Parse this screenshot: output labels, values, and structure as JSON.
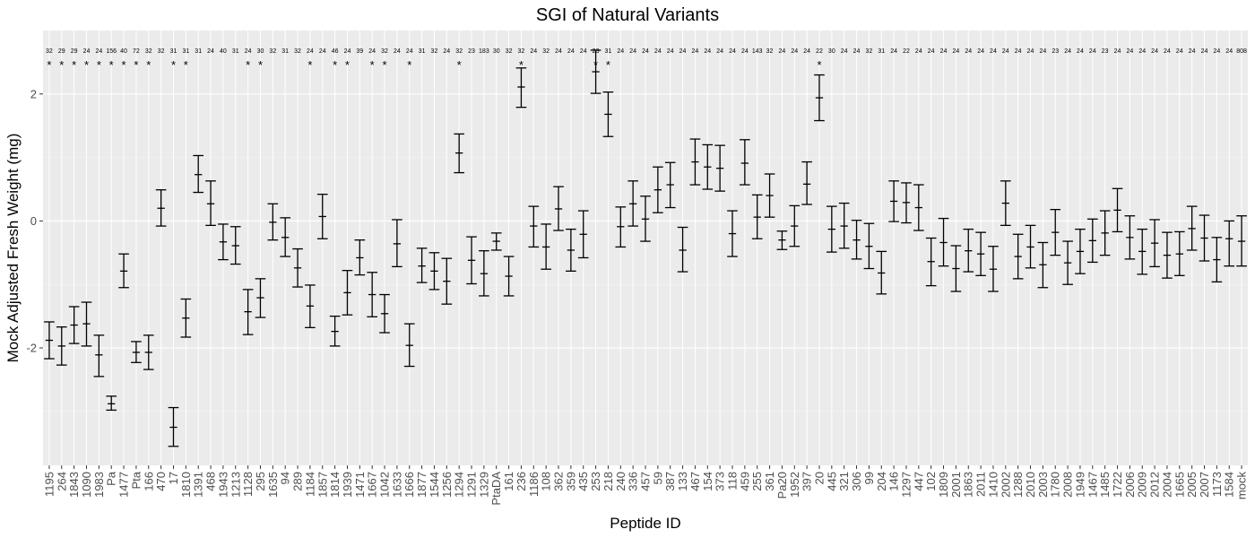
{
  "chart_data": {
    "type": "errorbar",
    "title": "SGI of Natural Variants",
    "xlabel": "Peptide ID",
    "ylabel": "Mock Adjusted Fresh Weight (mg)",
    "ylim": [
      -3.85,
      3.0
    ],
    "yticks": [
      -2,
      0,
      2
    ],
    "grid": true,
    "categories": [
      "1195",
      "264",
      "1843",
      "1090",
      "1983",
      "Pa",
      "1477",
      "Pta",
      "166",
      "470",
      "17",
      "1810",
      "1391",
      "468",
      "1943",
      "1213",
      "1128",
      "295",
      "1635",
      "94",
      "289",
      "1184",
      "1857",
      "1814",
      "1939",
      "1471",
      "1667",
      "1042",
      "1633",
      "1666",
      "1877",
      "1544",
      "1256",
      "1294",
      "1291",
      "1329",
      "PtaDA",
      "161",
      "236",
      "1186",
      "108",
      "362",
      "359",
      "435",
      "253",
      "218",
      "240",
      "336",
      "457",
      "59",
      "387",
      "133",
      "467",
      "154",
      "373",
      "118",
      "459",
      "255",
      "361",
      "Pa20",
      "1952",
      "397",
      "20",
      "445",
      "321",
      "306",
      "99",
      "204",
      "146",
      "1297",
      "447",
      "102",
      "1809",
      "2001",
      "1863",
      "2011",
      "1410",
      "2002",
      "1288",
      "2010",
      "2003",
      "1780",
      "2008",
      "1949",
      "1467",
      "1485",
      "1722",
      "2006",
      "2009",
      "2012",
      "2004",
      "1665",
      "2005",
      "2007",
      "1173",
      "1584",
      "mock"
    ],
    "n": [
      "32",
      "29",
      "29",
      "24",
      "24",
      "156",
      "40",
      "72",
      "32",
      "32",
      "31",
      "31",
      "31",
      "24",
      "40",
      "31",
      "24",
      "30",
      "32",
      "31",
      "32",
      "24",
      "24",
      "46",
      "24",
      "39",
      "24",
      "32",
      "24",
      "24",
      "31",
      "32",
      "24",
      "32",
      "23",
      "183",
      "30",
      "32",
      "32",
      "24",
      "32",
      "24",
      "24",
      "24",
      "23",
      "31",
      "24",
      "24",
      "24",
      "24",
      "24",
      "24",
      "24",
      "24",
      "24",
      "24",
      "24",
      "143",
      "32",
      "24",
      "24",
      "24",
      "22",
      "30",
      "24",
      "24",
      "32",
      "31",
      "24",
      "22",
      "24",
      "24",
      "24",
      "24",
      "24",
      "24",
      "24",
      "24",
      "24",
      "24",
      "24",
      "23",
      "24",
      "24",
      "24",
      "23",
      "24",
      "24",
      "24",
      "24",
      "24",
      "24",
      "24",
      "24",
      "24",
      "24",
      "808"
    ],
    "significant": [
      true,
      true,
      true,
      true,
      true,
      true,
      true,
      true,
      true,
      false,
      true,
      true,
      false,
      false,
      false,
      false,
      true,
      true,
      false,
      false,
      false,
      true,
      false,
      true,
      true,
      false,
      true,
      true,
      false,
      true,
      false,
      false,
      false,
      true,
      false,
      false,
      false,
      false,
      true,
      false,
      false,
      false,
      false,
      false,
      true,
      true,
      false,
      false,
      false,
      false,
      false,
      false,
      false,
      false,
      false,
      false,
      false,
      false,
      false,
      false,
      false,
      false,
      true,
      false,
      false,
      false,
      false,
      false,
      false,
      false,
      false,
      false,
      false,
      false,
      false,
      false,
      false,
      false,
      false,
      false,
      false,
      false,
      false,
      false,
      false,
      false,
      false,
      false,
      false,
      false,
      false,
      false,
      false,
      false,
      false,
      false,
      false
    ],
    "mean": [
      -1.88,
      -1.97,
      -1.64,
      -1.62,
      -2.11,
      -2.88,
      -0.79,
      -2.07,
      -2.07,
      0.2,
      -3.25,
      -1.53,
      0.73,
      0.27,
      -0.33,
      -0.39,
      -1.43,
      -1.21,
      -0.02,
      -0.26,
      -0.74,
      -1.34,
      0.07,
      -1.74,
      -1.13,
      -0.58,
      -1.16,
      -1.46,
      -0.36,
      -1.96,
      -0.71,
      -0.79,
      -0.95,
      1.07,
      -0.62,
      -0.83,
      -0.32,
      -0.87,
      2.11,
      -0.08,
      -0.41,
      0.19,
      -0.46,
      -0.21,
      2.35,
      1.68,
      -0.09,
      0.27,
      0.03,
      0.49,
      0.57,
      -0.46,
      0.93,
      0.85,
      0.83,
      -0.2,
      0.91,
      0.06,
      0.4,
      -0.3,
      -0.08,
      0.58,
      1.94,
      -0.13,
      -0.08,
      -0.3,
      -0.4,
      -0.82,
      0.31,
      0.29,
      0.21,
      -0.64,
      -0.34,
      -0.75,
      -0.47,
      -0.52,
      -0.76,
      0.28,
      -0.56,
      -0.41,
      -0.69,
      -0.18,
      -0.66,
      -0.48,
      -0.31,
      -0.19,
      0.17,
      -0.26,
      -0.48,
      -0.35,
      -0.54,
      -0.52,
      -0.12,
      -0.27,
      -0.61,
      -0.28,
      -0.32
    ],
    "lower": [
      -2.17,
      -2.27,
      -1.93,
      -1.97,
      -2.45,
      -2.98,
      -1.05,
      -2.23,
      -2.34,
      -0.08,
      -3.55,
      -1.83,
      0.45,
      -0.07,
      -0.61,
      -0.68,
      -1.79,
      -1.52,
      -0.3,
      -0.56,
      -1.04,
      -1.68,
      -0.28,
      -1.97,
      -1.48,
      -0.85,
      -1.51,
      -1.76,
      -0.72,
      -2.29,
      -0.97,
      -1.08,
      -1.31,
      0.76,
      -0.99,
      -1.18,
      -0.46,
      -1.18,
      1.79,
      -0.41,
      -0.76,
      -0.15,
      -0.79,
      -0.58,
      2.01,
      1.33,
      -0.41,
      -0.08,
      -0.32,
      0.13,
      0.21,
      -0.8,
      0.57,
      0.5,
      0.47,
      -0.56,
      0.57,
      -0.28,
      0.06,
      -0.45,
      -0.4,
      0.26,
      1.58,
      -0.49,
      -0.43,
      -0.6,
      -0.75,
      -1.15,
      -0.01,
      -0.03,
      -0.15,
      -1.02,
      -0.71,
      -1.11,
      -0.8,
      -0.86,
      -1.11,
      -0.07,
      -0.91,
      -0.74,
      -1.05,
      -0.54,
      -1.0,
      -0.83,
      -0.65,
      -0.54,
      -0.17,
      -0.6,
      -0.84,
      -0.72,
      -0.9,
      -0.86,
      -0.46,
      -0.63,
      -0.96,
      -0.71,
      -0.71
    ],
    "upper": [
      -1.59,
      -1.67,
      -1.35,
      -1.28,
      -1.8,
      -2.76,
      -0.52,
      -1.9,
      -1.8,
      0.49,
      -2.94,
      -1.23,
      1.03,
      0.63,
      -0.05,
      -0.09,
      -1.08,
      -0.91,
      0.27,
      0.05,
      -0.44,
      -1.01,
      0.42,
      -1.5,
      -0.78,
      -0.3,
      -0.81,
      -1.16,
      0.02,
      -1.62,
      -0.43,
      -0.5,
      -0.59,
      1.37,
      -0.25,
      -0.47,
      -0.19,
      -0.56,
      2.41,
      0.23,
      -0.05,
      0.54,
      -0.13,
      0.16,
      2.69,
      2.03,
      0.22,
      0.63,
      0.39,
      0.85,
      0.92,
      -0.1,
      1.29,
      1.2,
      1.19,
      0.16,
      1.28,
      0.41,
      0.74,
      -0.16,
      0.24,
      0.93,
      2.3,
      0.23,
      0.28,
      0.01,
      -0.04,
      -0.48,
      0.63,
      0.6,
      0.57,
      -0.27,
      0.04,
      -0.39,
      -0.13,
      -0.18,
      -0.4,
      0.63,
      -0.21,
      -0.07,
      -0.34,
      0.18,
      -0.32,
      -0.13,
      0.03,
      0.16,
      0.51,
      0.08,
      -0.13,
      0.02,
      -0.18,
      -0.17,
      0.23,
      0.09,
      -0.26,
      0.0,
      0.08
    ]
  },
  "colors": {
    "panel_background": "#ebebeb",
    "grid_major": "#ffffff",
    "grid_minor": "#f4f4f4",
    "errorbar": "#000000",
    "tick_text": "#4d4d4d"
  }
}
